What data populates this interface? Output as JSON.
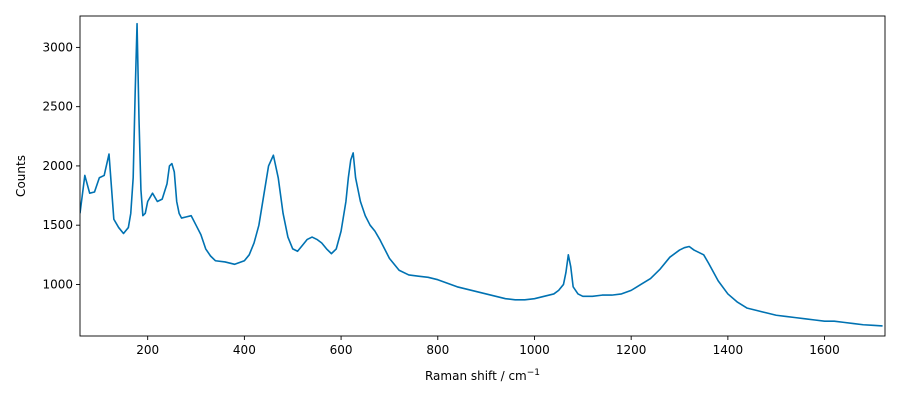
{
  "chart_data": {
    "type": "line",
    "title": "",
    "xlabel": "Raman shift / cm",
    "xlabel_sup": "−1",
    "ylabel": "Counts",
    "xlim": [
      60,
      1725
    ],
    "ylim": [
      565,
      3265
    ],
    "xticks": [
      200,
      400,
      600,
      800,
      1000,
      1200,
      1400,
      1600
    ],
    "yticks": [
      1000,
      1500,
      2000,
      2500,
      3000
    ],
    "grid": false,
    "legend": "none",
    "series_color": "#0072b2",
    "series": [
      {
        "x": [
          60,
          70,
          80,
          90,
          100,
          110,
          120,
          130,
          140,
          150,
          160,
          165,
          170,
          174,
          178,
          182,
          186,
          190,
          195,
          200,
          210,
          220,
          230,
          240,
          245,
          250,
          255,
          260,
          265,
          270,
          280,
          290,
          300,
          310,
          320,
          330,
          340,
          360,
          380,
          400,
          410,
          420,
          430,
          440,
          450,
          460,
          470,
          480,
          490,
          500,
          510,
          520,
          530,
          540,
          550,
          560,
          570,
          580,
          590,
          600,
          610,
          615,
          620,
          625,
          630,
          640,
          650,
          660,
          670,
          680,
          690,
          700,
          720,
          740,
          760,
          780,
          800,
          820,
          840,
          860,
          880,
          900,
          920,
          940,
          960,
          980,
          1000,
          1020,
          1040,
          1050,
          1060,
          1065,
          1070,
          1075,
          1080,
          1090,
          1100,
          1120,
          1140,
          1160,
          1180,
          1200,
          1220,
          1240,
          1260,
          1280,
          1300,
          1310,
          1320,
          1330,
          1340,
          1350,
          1360,
          1380,
          1400,
          1420,
          1440,
          1460,
          1480,
          1500,
          1520,
          1540,
          1560,
          1580,
          1600,
          1620,
          1640,
          1660,
          1680,
          1700,
          1720
        ],
        "y": [
          1600,
          1920,
          1770,
          1780,
          1900,
          1920,
          2100,
          1550,
          1480,
          1430,
          1480,
          1600,
          1900,
          2600,
          3200,
          2400,
          1800,
          1580,
          1600,
          1700,
          1770,
          1700,
          1720,
          1850,
          2000,
          2020,
          1950,
          1700,
          1600,
          1560,
          1570,
          1580,
          1500,
          1420,
          1300,
          1240,
          1200,
          1190,
          1170,
          1200,
          1250,
          1350,
          1500,
          1750,
          2000,
          2090,
          1900,
          1600,
          1400,
          1300,
          1280,
          1330,
          1380,
          1400,
          1380,
          1350,
          1300,
          1260,
          1300,
          1450,
          1700,
          1900,
          2050,
          2110,
          1900,
          1700,
          1580,
          1500,
          1450,
          1380,
          1300,
          1220,
          1120,
          1080,
          1070,
          1060,
          1040,
          1010,
          980,
          960,
          940,
          920,
          900,
          880,
          870,
          870,
          880,
          900,
          920,
          950,
          1000,
          1100,
          1250,
          1150,
          980,
          920,
          900,
          900,
          910,
          910,
          920,
          950,
          1000,
          1050,
          1130,
          1230,
          1290,
          1310,
          1320,
          1290,
          1270,
          1250,
          1180,
          1030,
          920,
          850,
          800,
          780,
          760,
          740,
          730,
          720,
          710,
          700,
          690,
          690,
          680,
          670,
          660,
          655,
          650
        ]
      }
    ]
  }
}
